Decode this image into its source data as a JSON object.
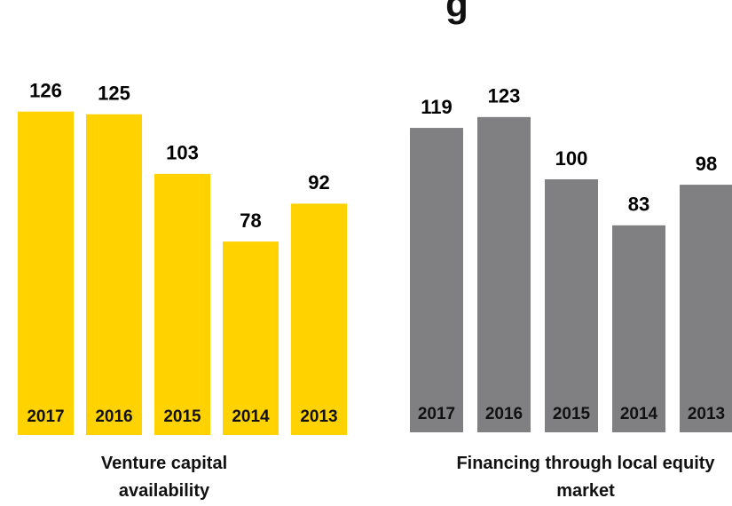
{
  "header": {
    "text": "g"
  },
  "chart_data": [
    {
      "type": "bar",
      "categories": [
        "2017",
        "2016",
        "2015",
        "2014",
        "2013"
      ],
      "values": [
        126,
        125,
        103,
        78,
        92
      ],
      "color": "#ffd200",
      "xlabel": "Venture capital availability"
    },
    {
      "type": "bar",
      "categories": [
        "2017",
        "2016",
        "2015",
        "2014",
        "2013"
      ],
      "values": [
        119,
        123,
        100,
        83,
        98
      ],
      "color": "#808083",
      "xlabel": "Financing through local equity market"
    }
  ]
}
